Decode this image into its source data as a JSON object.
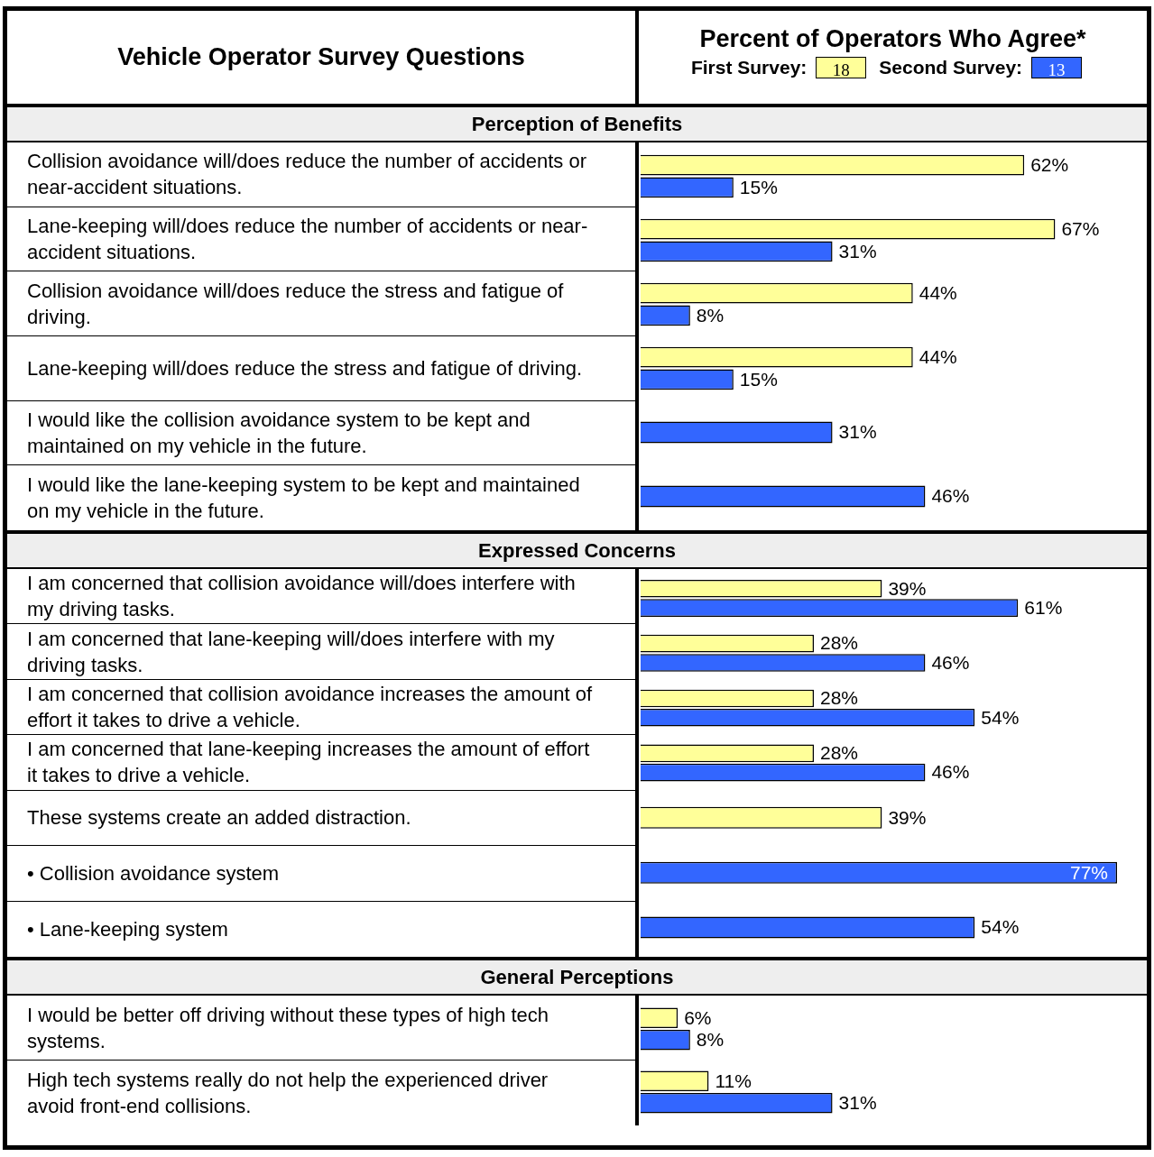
{
  "chart_data": [
    {
      "type": "bar",
      "orientation": "horizontal",
      "title": "Perception of Benefits",
      "ylabel": "Vehicle Operator Survey Questions",
      "xlabel": "Percent of Operators Who Agree*",
      "legend": "top",
      "annotations": [
        "18",
        "13"
      ],
      "tick_labels": "y",
      "categories": [
        "Collision avoidance will/does reduce the number of accidents or near-accident situations.",
        "Lane-keeping will/does reduce the number of accidents or near-accident situations.",
        "Collision avoidance will/does reduce the stress and fatigue of driving.",
        "Lane-keeping will/does reduce the stress and fatigue of driving.",
        "I would like the collision avoidance system to be kept and maintained on my vehicle in the future.",
        "I would like the lane-keeping system to be kept and maintained on my vehicle in the future."
      ],
      "series": [
        {
          "name": "First Survey:",
          "color": "#ffff99",
          "values": [
            62,
            67,
            44,
            44,
            null,
            null
          ],
          "value_labels": [
            "62%",
            "67%",
            "44%",
            "44%",
            null,
            null
          ]
        },
        {
          "name": "Second Survey:",
          "color": "#3366ff",
          "values": [
            15,
            31,
            8,
            15,
            31,
            46
          ],
          "value_labels": [
            "15%",
            "31%",
            "8%",
            "15%",
            "31%",
            "46%"
          ]
        }
      ]
    },
    {
      "type": "bar",
      "orientation": "horizontal",
      "title": "Expressed Concerns",
      "tick_labels": "y",
      "categories": [
        "I am concerned that collision avoidance will/does interfere with my driving tasks.",
        "I am concerned that lane-keeping will/does interfere with my driving tasks.",
        "I am concerned that collision avoidance increases the amount of effort it takes to drive a vehicle.",
        "I am concerned that lane-keeping increases the amount of effort it takes to drive a vehicle.",
        "These systems create an added distraction.",
        "• Collision avoidance system",
        "• Lane-keeping system"
      ],
      "series": [
        {
          "color": "#ffff99",
          "values": [
            39,
            28,
            28,
            28,
            39,
            null,
            null
          ],
          "value_labels": [
            "39%",
            "28%",
            "28%",
            "28%",
            "39%",
            null,
            null
          ]
        },
        {
          "color": "#3366ff",
          "values": [
            61,
            46,
            54,
            46,
            null,
            77,
            54
          ],
          "value_labels": [
            "61%",
            "46%",
            "54%",
            "46%",
            null,
            "77%",
            "54%"
          ]
        }
      ]
    },
    {
      "type": "bar",
      "orientation": "horizontal",
      "title": "General Perceptions",
      "tick_labels": "y",
      "categories": [
        "I would be better off driving without these types of high tech systems.",
        "High tech systems really do not help the experienced driver avoid front-end collisions."
      ],
      "series": [
        {
          "color": "#ffff99",
          "values": [
            6,
            11
          ],
          "value_labels": [
            "6%",
            "11%"
          ]
        },
        {
          "color": "#3366ff",
          "values": [
            8,
            31
          ],
          "value_labels": [
            "8%",
            "31%"
          ]
        }
      ]
    }
  ]
}
